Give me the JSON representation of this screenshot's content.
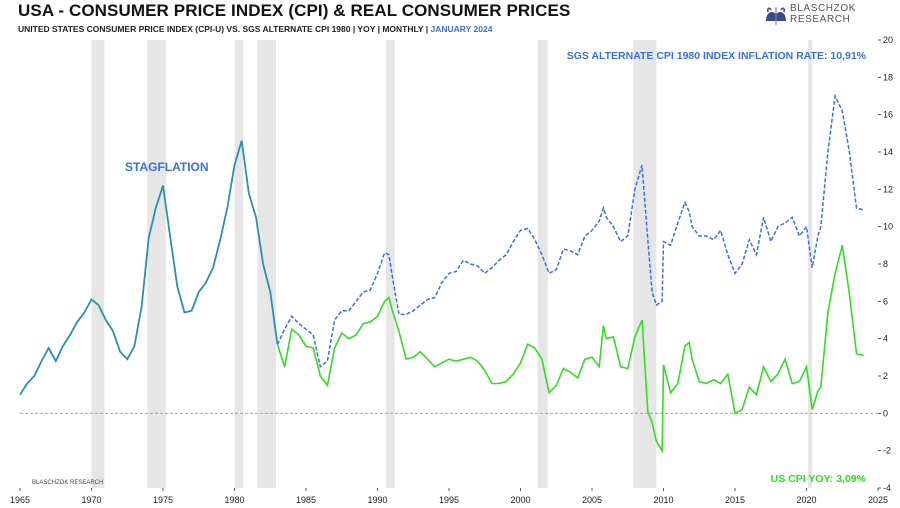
{
  "header": {
    "title": "USA - CONSUMER PRICE INDEX (CPI) & REAL CONSUMER PRICES",
    "subtitle_main": "UNITED STATES CONSUMER PRICE INDEX (CPI-U) VS. SGS ALTERNATE CPI 1980  | YOY | MONTHLY | ",
    "subtitle_date": "JANUARY 2024",
    "logo_line1": "BLASCHZOK",
    "logo_line2": "RESEARCH"
  },
  "colors": {
    "sgs": "#3b6fe0",
    "cpi": "#33dd22",
    "recession": "#e6e6e6",
    "zero": "#999999"
  },
  "chart_data": {
    "type": "line",
    "xlim": [
      1965,
      2025
    ],
    "ylim": [
      -4,
      20
    ],
    "x_ticks": [
      "1965",
      "1970",
      "1975",
      "1980",
      "1985",
      "1990",
      "1995",
      "2000",
      "2005",
      "2010",
      "2015",
      "2020",
      "2025"
    ],
    "y_ticks": [
      "-4",
      "-2",
      "0",
      "2",
      "4",
      "6",
      "8",
      "10",
      "12",
      "14",
      "16",
      "18",
      "20"
    ],
    "recessions": [
      [
        1970.0,
        1970.9
      ],
      [
        1973.9,
        1975.2
      ],
      [
        1980.0,
        1980.6
      ],
      [
        1981.6,
        1982.9
      ],
      [
        1990.6,
        1991.2
      ],
      [
        2001.2,
        2001.9
      ],
      [
        2007.9,
        2009.5
      ],
      [
        2020.1,
        2020.4
      ]
    ],
    "annotations": {
      "stagflation": "STAGFLATION",
      "sgs_label": "SGS ALTERNATE CPI 1980 INDEX INFLATION RATE: 10,91%",
      "cpi_label": "US CPI YOY: 3,09%",
      "watermark": "BLASCHZOK   RESEARCH"
    },
    "series": [
      {
        "name": "US CPI YOY",
        "x": [
          1965.0,
          1965.5,
          1966.0,
          1966.5,
          1967.0,
          1967.5,
          1968.0,
          1968.5,
          1969.0,
          1969.5,
          1970.0,
          1970.5,
          1971.0,
          1971.5,
          1972.0,
          1972.5,
          1973.0,
          1973.5,
          1974.0,
          1974.5,
          1975.0,
          1975.5,
          1976.0,
          1976.5,
          1977.0,
          1977.5,
          1978.0,
          1978.5,
          1979.0,
          1979.5,
          1980.0,
          1980.5,
          1981.0,
          1981.5,
          1982.0,
          1982.5,
          1983.0,
          1983.5,
          1984.0,
          1984.5,
          1985.0,
          1985.5,
          1986.0,
          1986.5,
          1987.0,
          1987.5,
          1988.0,
          1988.5,
          1989.0,
          1989.5,
          1990.0,
          1990.5,
          1990.8,
          1991.0,
          1991.5,
          1992.0,
          1992.5,
          1993.0,
          1993.5,
          1994.0,
          1994.5,
          1995.0,
          1995.5,
          1996.0,
          1996.5,
          1997.0,
          1997.5,
          1998.0,
          1998.5,
          1999.0,
          1999.5,
          2000.0,
          2000.5,
          2001.0,
          2001.5,
          2002.0,
          2002.5,
          2003.0,
          2003.5,
          2004.0,
          2004.5,
          2005.0,
          2005.5,
          2005.8,
          2006.0,
          2006.5,
          2007.0,
          2007.5,
          2008.0,
          2008.5,
          2008.9,
          2009.2,
          2009.5,
          2009.9,
          2010.0,
          2010.5,
          2011.0,
          2011.5,
          2011.8,
          2012.0,
          2012.5,
          2013.0,
          2013.5,
          2014.0,
          2014.5,
          2015.0,
          2015.5,
          2016.0,
          2016.5,
          2017.0,
          2017.5,
          2018.0,
          2018.5,
          2019.0,
          2019.5,
          2020.0,
          2020.4,
          2020.8,
          2021.0,
          2021.5,
          2022.0,
          2022.5,
          2023.0,
          2023.5,
          2024.0
        ],
        "values": [
          1.0,
          1.6,
          2.0,
          2.8,
          3.5,
          2.8,
          3.6,
          4.2,
          4.9,
          5.4,
          6.1,
          5.8,
          5.0,
          4.4,
          3.3,
          2.9,
          3.6,
          5.7,
          9.4,
          11.0,
          12.2,
          9.5,
          6.8,
          5.4,
          5.5,
          6.5,
          7.0,
          7.8,
          9.3,
          11.0,
          13.3,
          14.6,
          11.8,
          10.5,
          8.0,
          6.5,
          3.7,
          2.5,
          4.5,
          4.2,
          3.6,
          3.5,
          2.0,
          1.5,
          3.5,
          4.3,
          4.0,
          4.2,
          4.8,
          4.9,
          5.2,
          6.0,
          6.2,
          5.6,
          4.4,
          2.9,
          3.0,
          3.3,
          2.9,
          2.5,
          2.7,
          2.9,
          2.8,
          2.9,
          3.0,
          2.8,
          2.3,
          1.6,
          1.6,
          1.7,
          2.1,
          2.7,
          3.7,
          3.5,
          2.9,
          1.1,
          1.5,
          2.4,
          2.2,
          1.9,
          2.9,
          3.0,
          2.5,
          4.7,
          4.0,
          4.1,
          2.5,
          2.4,
          4.1,
          5.0,
          0.1,
          -0.5,
          -1.5,
          -2.0,
          2.6,
          1.1,
          1.6,
          3.6,
          3.8,
          2.9,
          1.7,
          1.6,
          1.8,
          1.6,
          2.1,
          0.0,
          0.2,
          1.4,
          1.0,
          2.5,
          1.7,
          2.1,
          2.9,
          1.6,
          1.7,
          2.5,
          0.2,
          1.2,
          1.4,
          5.4,
          7.5,
          9.0,
          6.4,
          3.2,
          3.1
        ],
        "style": "solid"
      },
      {
        "name": "SGS ALTERNATE CPI 1980 INDEX INFLATION RATE",
        "x": [
          1983.0,
          1983.5,
          1984.0,
          1984.5,
          1985.0,
          1985.5,
          1986.0,
          1986.5,
          1987.0,
          1987.5,
          1988.0,
          1988.5,
          1989.0,
          1989.5,
          1990.0,
          1990.5,
          1990.8,
          1991.0,
          1991.5,
          1992.0,
          1992.5,
          1993.0,
          1993.5,
          1994.0,
          1994.5,
          1995.0,
          1995.5,
          1996.0,
          1996.5,
          1997.0,
          1997.5,
          1998.0,
          1998.5,
          1999.0,
          1999.5,
          2000.0,
          2000.5,
          2001.0,
          2001.5,
          2002.0,
          2002.5,
          2003.0,
          2003.5,
          2004.0,
          2004.5,
          2005.0,
          2005.5,
          2005.8,
          2006.0,
          2006.5,
          2007.0,
          2007.5,
          2008.0,
          2008.5,
          2008.9,
          2009.2,
          2009.5,
          2009.9,
          2010.0,
          2010.5,
          2011.0,
          2011.5,
          2011.8,
          2012.0,
          2012.5,
          2013.0,
          2013.5,
          2014.0,
          2014.5,
          2015.0,
          2015.5,
          2016.0,
          2016.5,
          2017.0,
          2017.5,
          2018.0,
          2018.5,
          2019.0,
          2019.5,
          2020.0,
          2020.4,
          2020.8,
          2021.0,
          2021.5,
          2022.0,
          2022.5,
          2023.0,
          2023.5,
          2024.0
        ],
        "values": [
          3.7,
          4.5,
          5.2,
          4.8,
          4.5,
          4.2,
          2.5,
          2.8,
          5.0,
          5.5,
          5.5,
          6.0,
          6.5,
          6.6,
          7.5,
          8.6,
          8.5,
          7.5,
          5.3,
          5.3,
          5.5,
          5.8,
          6.1,
          6.2,
          7.0,
          7.5,
          7.6,
          8.2,
          8.0,
          7.9,
          7.5,
          7.8,
          8.2,
          8.5,
          9.2,
          9.8,
          9.9,
          9.3,
          8.5,
          7.5,
          7.7,
          8.8,
          8.7,
          8.5,
          9.5,
          9.8,
          10.3,
          11.0,
          10.5,
          10.0,
          9.2,
          9.5,
          12.0,
          13.3,
          9.3,
          6.5,
          5.8,
          6.0,
          9.2,
          9.0,
          10.2,
          11.3,
          10.8,
          10.0,
          9.5,
          9.5,
          9.3,
          9.8,
          8.5,
          7.5,
          8.0,
          9.3,
          8.5,
          10.5,
          9.2,
          10.0,
          10.2,
          10.5,
          9.5,
          10.0,
          7.8,
          9.5,
          10.0,
          14.0,
          17.0,
          16.2,
          14.0,
          11.0,
          10.9
        ],
        "style": "dashed"
      }
    ]
  }
}
